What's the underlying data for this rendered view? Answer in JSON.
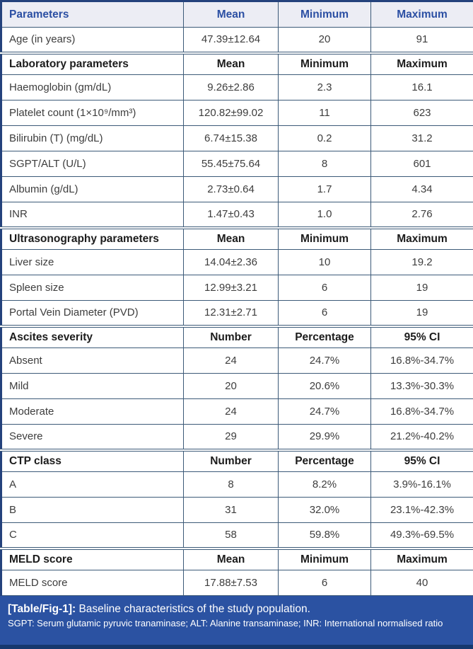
{
  "table": {
    "header": {
      "parameters": "Parameters",
      "mean": "Mean",
      "minimum": "Minimum",
      "maximum": "Maximum"
    },
    "rows": [
      {
        "type": "data",
        "cells": [
          "Age (in years)",
          "47.39±12.64",
          "20",
          "91"
        ]
      },
      {
        "type": "section",
        "cells": [
          "Laboratory parameters",
          "Mean",
          "Minimum",
          "Maximum"
        ]
      },
      {
        "type": "data",
        "cells": [
          "Haemoglobin (gm/dL)",
          "9.26±2.86",
          "2.3",
          "16.1"
        ]
      },
      {
        "type": "data",
        "cells": [
          "Platelet count (1×10⁹/mm³)",
          "120.82±99.02",
          "11",
          "623"
        ]
      },
      {
        "type": "data",
        "cells": [
          "Bilirubin (T) (mg/dL)",
          "6.74±15.38",
          "0.2",
          "31.2"
        ]
      },
      {
        "type": "data",
        "cells": [
          "SGPT/ALT (U/L)",
          "55.45±75.64",
          "8",
          "601"
        ]
      },
      {
        "type": "data",
        "cells": [
          "Albumin (g/dL)",
          "2.73±0.64",
          "1.7",
          "4.34"
        ]
      },
      {
        "type": "data",
        "cells": [
          "INR",
          "1.47±0.43",
          "1.0",
          "2.76"
        ]
      },
      {
        "type": "section",
        "cells": [
          "Ultrasonography parameters",
          "Mean",
          "Minimum",
          "Maximum"
        ]
      },
      {
        "type": "data",
        "cells": [
          "Liver size",
          "14.04±2.36",
          "10",
          "19.2"
        ]
      },
      {
        "type": "data",
        "cells": [
          "Spleen size",
          "12.99±3.21",
          "6",
          "19"
        ]
      },
      {
        "type": "data",
        "cells": [
          "Portal Vein Diameter (PVD)",
          "12.31±2.71",
          "6",
          "19"
        ]
      },
      {
        "type": "section",
        "cells": [
          "Ascites severity",
          "Number",
          "Percentage",
          "95% CI"
        ]
      },
      {
        "type": "data",
        "cells": [
          "Absent",
          "24",
          "24.7%",
          "16.8%-34.7%"
        ]
      },
      {
        "type": "data",
        "cells": [
          "Mild",
          "20",
          "20.6%",
          "13.3%-30.3%"
        ]
      },
      {
        "type": "data",
        "cells": [
          "Moderate",
          "24",
          "24.7%",
          "16.8%-34.7%"
        ]
      },
      {
        "type": "data",
        "cells": [
          "Severe",
          "29",
          "29.9%",
          "21.2%-40.2%"
        ]
      },
      {
        "type": "section",
        "cells": [
          "CTP class",
          "Number",
          "Percentage",
          "95% CI"
        ]
      },
      {
        "type": "data",
        "cells": [
          "A",
          "8",
          "8.2%",
          "3.9%-16.1%"
        ]
      },
      {
        "type": "data",
        "cells": [
          "B",
          "31",
          "32.0%",
          "23.1%-42.3%"
        ]
      },
      {
        "type": "data",
        "cells": [
          "C",
          "58",
          "59.8%",
          "49.3%-69.5%"
        ]
      },
      {
        "type": "section",
        "cells": [
          "MELD score",
          "Mean",
          "Minimum",
          "Maximum"
        ]
      },
      {
        "type": "data",
        "cells": [
          "MELD score",
          "17.88±7.53",
          "6",
          "40"
        ]
      }
    ]
  },
  "caption": {
    "tag": "[Table/Fig-1]:",
    "title": " Baseline characteristics of the study population.",
    "note": "SGPT: Serum glutamic pyruvic tranaminase; ALT: Alanine transaminase; INR: International normalised ratio"
  },
  "colors": {
    "header_bg": "#ecedf4",
    "header_text": "#2b4fa3",
    "grid_border": "#3c5a78",
    "outer_border": "#24427c",
    "body_text": "#3d3d3d",
    "section_text": "#1c1c1c",
    "footer_bg": "#2b52a2",
    "footer_bottom_strip": "#16386e",
    "footer_text": "#ffffff"
  }
}
